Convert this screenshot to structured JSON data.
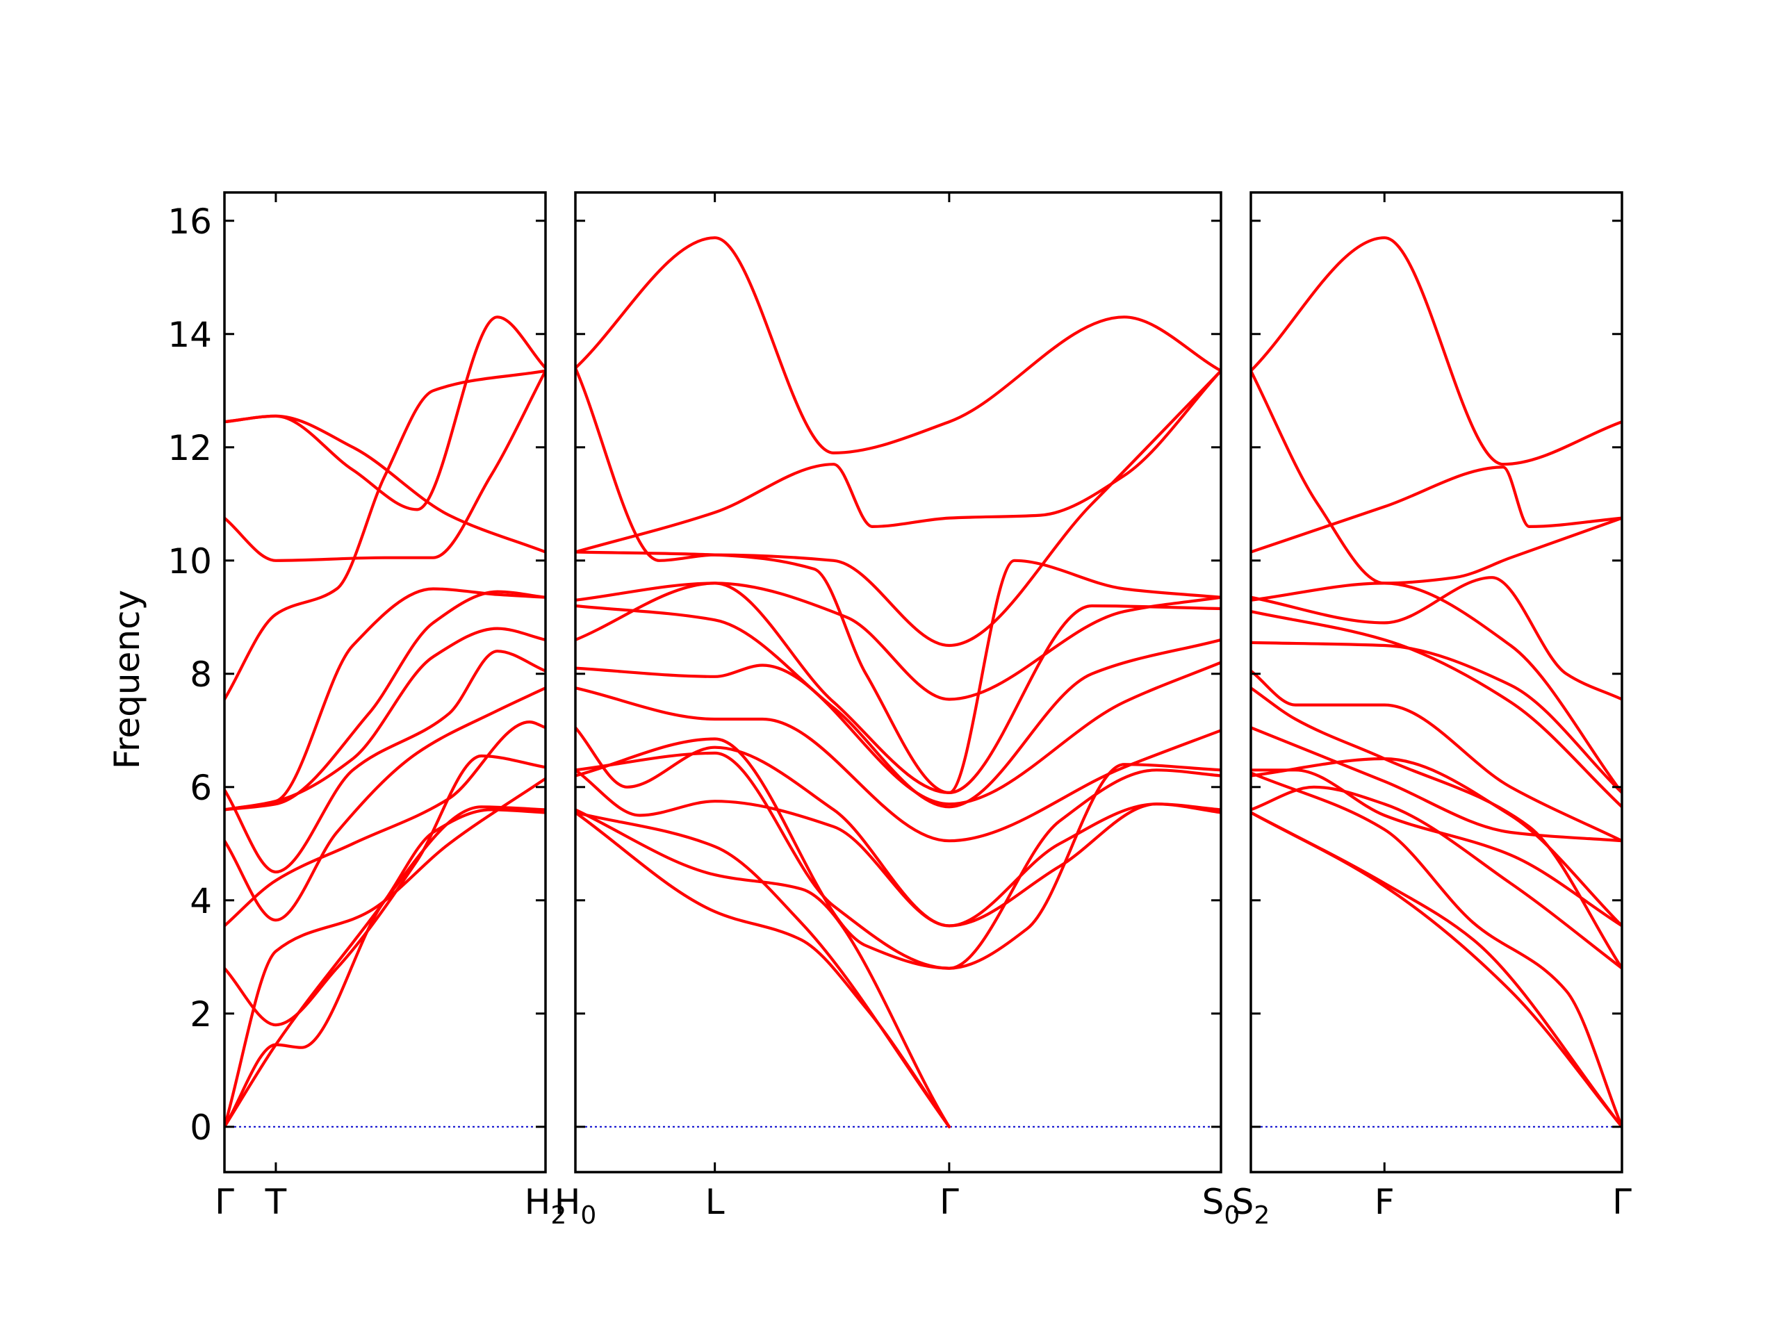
{
  "chart_data": {
    "type": "line",
    "ylabel": "Frequency",
    "ylim": [
      -0.8,
      16.5
    ],
    "y_ticks": [
      "0",
      "2",
      "4",
      "6",
      "8",
      "10",
      "12",
      "14",
      "16"
    ],
    "grid": false,
    "legend": "none",
    "colors": {
      "bands": "#ff0000",
      "zero_line": "#0000cc",
      "axes": "#000000"
    },
    "panels": [
      {
        "name": "Γ–T–H2",
        "x_range": [
          0,
          1
        ],
        "x_ticks": [
          {
            "x": 0.0,
            "label": "Γ"
          },
          {
            "x": 0.16,
            "label": "T"
          },
          {
            "x": 1.0,
            "label": "H",
            "sub": "2"
          }
        ],
        "series": [
          {
            "x": [
              0,
              0.16,
              0.5,
              0.65,
              0.83,
              1
            ],
            "y": [
              0,
              1.45,
              4.0,
              5.2,
              5.6,
              5.55
            ]
          },
          {
            "x": [
              0,
              0.16,
              0.24,
              0.5,
              0.8,
              1
            ],
            "y": [
              0,
              1.45,
              1.4,
              4.0,
              5.65,
              5.6
            ]
          },
          {
            "x": [
              0,
              0.16,
              0.45,
              0.7,
              1
            ],
            "y": [
              0,
              3.1,
              3.8,
              5.0,
              6.15
            ]
          },
          {
            "x": [
              0,
              0.16,
              0.35,
              0.6,
              0.8,
              1
            ],
            "y": [
              2.8,
              1.8,
              2.8,
              4.7,
              6.55,
              6.35
            ]
          },
          {
            "x": [
              0,
              0.16,
              0.4,
              0.7,
              0.95,
              1
            ],
            "y": [
              3.55,
              4.35,
              5.0,
              5.8,
              7.15,
              7.05
            ]
          },
          {
            "x": [
              0,
              0.16,
              0.35,
              0.6,
              0.85,
              1
            ],
            "y": [
              5.05,
              3.65,
              5.2,
              6.6,
              7.35,
              7.75
            ]
          },
          {
            "x": [
              0,
              0.16,
              0.4,
              0.7,
              0.85,
              1
            ],
            "y": [
              5.95,
              4.5,
              6.3,
              7.3,
              8.4,
              8.05
            ]
          },
          {
            "x": [
              0,
              0.16,
              0.4,
              0.65,
              0.85,
              1
            ],
            "y": [
              5.6,
              5.75,
              6.5,
              8.3,
              8.8,
              8.6
            ]
          },
          {
            "x": [
              0,
              0.16,
              0.45,
              0.65,
              0.85,
              1
            ],
            "y": [
              5.6,
              5.7,
              7.3,
              8.9,
              9.45,
              9.35
            ]
          },
          {
            "x": [
              0,
              0.16,
              0.4,
              0.65,
              0.85,
              1
            ],
            "y": [
              5.6,
              5.75,
              8.5,
              9.5,
              9.4,
              9.35
            ]
          },
          {
            "x": [
              0,
              0.16,
              0.35,
              0.5,
              0.65,
              1
            ],
            "y": [
              7.55,
              9.05,
              9.5,
              11.5,
              13.0,
              13.35
            ]
          },
          {
            "x": [
              0,
              0.16,
              0.5,
              0.65,
              0.83,
              1
            ],
            "y": [
              10.75,
              10.0,
              10.05,
              10.05,
              11.5,
              13.35
            ]
          },
          {
            "x": [
              0,
              0.16,
              0.4,
              0.6,
              0.85,
              1
            ],
            "y": [
              12.45,
              12.55,
              11.6,
              10.9,
              14.3,
              13.4
            ]
          },
          {
            "x": [
              0,
              0.16,
              0.4,
              0.7,
              1
            ],
            "y": [
              12.45,
              12.55,
              12.0,
              10.8,
              10.15
            ]
          }
        ]
      },
      {
        "name": "H0–L–Γ–S0",
        "x_range": [
          0,
          1
        ],
        "x_ticks": [
          {
            "x": 0.0,
            "label": "H",
            "sub": "0"
          },
          {
            "x": 0.216,
            "label": "L"
          },
          {
            "x": 0.579,
            "label": "Γ"
          },
          {
            "x": 1.0,
            "label": "S",
            "sub": "0"
          }
        ],
        "series": [
          {
            "x": [
              0,
              0.216,
              0.35,
              0.45,
              0.579
            ],
            "y": [
              5.55,
              3.8,
              3.3,
              2.1,
              0
            ]
          },
          {
            "x": [
              0,
              0.216,
              0.35,
              0.579
            ],
            "y": [
              5.6,
              4.45,
              4.2,
              0
            ]
          },
          {
            "x": [
              0,
              0.216,
              0.35,
              0.579
            ],
            "y": [
              5.55,
              4.95,
              3.6,
              0
            ]
          },
          {
            "x": [
              0,
              0.1,
              0.216,
              0.4,
              0.579,
              0.75,
              0.9,
              1
            ],
            "y": [
              6.3,
              5.5,
              5.75,
              5.3,
              3.55,
              5.0,
              5.7,
              5.55
            ]
          },
          {
            "x": [
              0,
              0.216,
              0.4,
              0.579,
              0.75,
              0.9,
              1
            ],
            "y": [
              6.3,
              6.6,
              3.9,
              2.8,
              5.4,
              6.3,
              6.2
            ]
          },
          {
            "x": [
              0,
              0.08,
              0.216,
              0.4,
              0.579,
              0.75,
              0.9,
              1
            ],
            "y": [
              7.05,
              6.0,
              6.7,
              5.6,
              3.55,
              4.6,
              5.7,
              5.6
            ]
          },
          {
            "x": [
              0,
              0.216,
              0.45,
              0.579,
              0.7,
              0.85,
              1
            ],
            "y": [
              6.2,
              6.85,
              3.2,
              2.8,
              3.5,
              6.4,
              6.3
            ]
          },
          {
            "x": [
              0,
              0.216,
              0.29,
              0.579,
              0.85,
              1
            ],
            "y": [
              7.75,
              7.2,
              7.2,
              5.05,
              6.35,
              7.0
            ]
          },
          {
            "x": [
              0,
              0.216,
              0.29,
              0.579,
              0.85,
              1
            ],
            "y": [
              8.1,
              7.95,
              8.15,
              5.7,
              7.5,
              8.2
            ]
          },
          {
            "x": [
              0,
              0.216,
              0.4,
              0.579,
              0.8,
              1
            ],
            "y": [
              9.2,
              8.95,
              7.4,
              5.65,
              8.0,
              8.6
            ]
          },
          {
            "x": [
              0,
              0.216,
              0.4,
              0.579,
              0.8,
              1
            ],
            "y": [
              8.6,
              9.6,
              7.5,
              5.9,
              9.2,
              9.15
            ]
          },
          {
            "x": [
              0,
              0.216,
              0.42,
              0.579,
              0.85,
              1
            ],
            "y": [
              9.3,
              9.6,
              9.0,
              7.55,
              9.1,
              9.35
            ]
          },
          {
            "x": [
              0,
              0.216,
              0.37,
              0.45,
              0.579,
              0.68,
              0.85,
              1
            ],
            "y": [
              10.15,
              10.1,
              9.85,
              8.0,
              5.9,
              10.0,
              9.5,
              9.35
            ]
          },
          {
            "x": [
              0,
              0.216,
              0.4,
              0.46,
              0.579,
              0.72,
              0.85,
              1
            ],
            "y": [
              10.15,
              10.85,
              11.7,
              10.6,
              10.75,
              10.8,
              11.5,
              13.35
            ]
          },
          {
            "x": [
              0,
              0.216,
              0.4,
              0.579,
              0.85,
              1
            ],
            "y": [
              13.4,
              15.7,
              11.9,
              12.45,
              14.3,
              13.35
            ]
          },
          {
            "x": [
              0,
              0.13,
              0.216,
              0.4,
              0.579,
              0.8,
              1
            ],
            "y": [
              13.4,
              10.0,
              10.1,
              10.0,
              8.5,
              11.0,
              13.35
            ]
          }
        ]
      },
      {
        "name": "S2–F–Γ",
        "x_range": [
          0,
          1
        ],
        "x_ticks": [
          {
            "x": 0.0,
            "label": "S",
            "sub": "2"
          },
          {
            "x": 0.36,
            "label": "F"
          },
          {
            "x": 1.0,
            "label": "Γ"
          }
        ],
        "series": [
          {
            "x": [
              0,
              0.36,
              0.7,
              1
            ],
            "y": [
              5.55,
              4.25,
              2.4,
              0
            ]
          },
          {
            "x": [
              0,
              0.36,
              0.6,
              1
            ],
            "y": [
              5.55,
              4.3,
              3.3,
              0
            ]
          },
          {
            "x": [
              0,
              0.36,
              0.6,
              0.85,
              1
            ],
            "y": [
              6.25,
              5.25,
              3.6,
              2.4,
              0
            ]
          },
          {
            "x": [
              0,
              0.12,
              0.36,
              0.7,
              1
            ],
            "y": [
              6.3,
              6.3,
              5.5,
              4.8,
              3.55
            ]
          },
          {
            "x": [
              0,
              0.17,
              0.36,
              0.7,
              1
            ],
            "y": [
              5.6,
              6.0,
              5.7,
              4.3,
              2.8
            ]
          },
          {
            "x": [
              0,
              0.36,
              0.7,
              1
            ],
            "y": [
              6.2,
              6.5,
              5.5,
              3.55
            ]
          },
          {
            "x": [
              0,
              0.36,
              0.7,
              1
            ],
            "y": [
              7.05,
              6.1,
              5.2,
              5.05
            ]
          },
          {
            "x": [
              0,
              0.12,
              0.36,
              0.75,
              1
            ],
            "y": [
              7.75,
              7.2,
              6.5,
              5.3,
              2.8
            ]
          },
          {
            "x": [
              0,
              0.12,
              0.36,
              0.7,
              1
            ],
            "y": [
              8.05,
              7.45,
              7.45,
              6.0,
              5.05
            ]
          },
          {
            "x": [
              0,
              0.36,
              0.7,
              1
            ],
            "y": [
              9.1,
              8.6,
              7.5,
              5.65
            ]
          },
          {
            "x": [
              0,
              0.36,
              0.7,
              1
            ],
            "y": [
              8.55,
              8.5,
              7.8,
              5.9
            ]
          },
          {
            "x": [
              0,
              0.36,
              0.7,
              1
            ],
            "y": [
              9.3,
              9.6,
              8.5,
              5.9
            ]
          },
          {
            "x": [
              0,
              0.36,
              0.65,
              0.85,
              1
            ],
            "y": [
              9.35,
              8.9,
              9.7,
              8.0,
              7.55
            ]
          },
          {
            "x": [
              0,
              0.36,
              0.68,
              0.75,
              1
            ],
            "y": [
              10.15,
              10.95,
              11.65,
              10.6,
              10.75
            ]
          },
          {
            "x": [
              0,
              0.36,
              0.68,
              1
            ],
            "y": [
              13.35,
              15.7,
              11.7,
              12.45
            ]
          },
          {
            "x": [
              0,
              0.18,
              0.36,
              0.55,
              0.7,
              1
            ],
            "y": [
              13.35,
              11.0,
              9.6,
              9.7,
              10.05,
              10.75
            ]
          }
        ]
      }
    ]
  }
}
